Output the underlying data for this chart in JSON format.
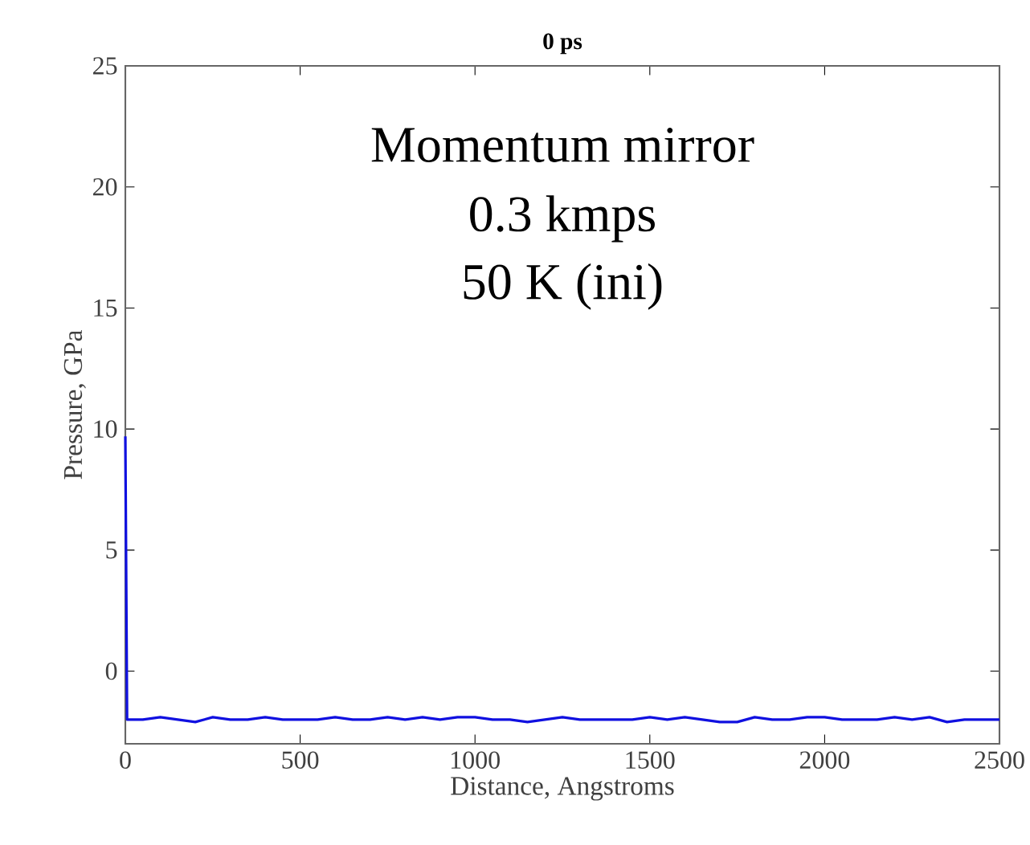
{
  "chart_data": {
    "type": "line",
    "title": "0 ps",
    "xlabel": "Distance, Angstroms",
    "ylabel": "Pressure, GPa",
    "annotations": [
      "Momentum mirror",
      "0.3 kmps",
      "50 K (ini)"
    ],
    "xlim": [
      0,
      2500
    ],
    "ylim": [
      -3,
      25
    ],
    "xticks": [
      0,
      500,
      1000,
      1500,
      2000,
      2500
    ],
    "yticks": [
      0,
      5,
      10,
      15,
      20,
      25
    ],
    "marker": "none",
    "line_style": "solid",
    "series": [
      {
        "color": "#1010e0",
        "x": [
          0,
          5,
          50,
          100,
          150,
          200,
          250,
          300,
          350,
          400,
          450,
          500,
          550,
          600,
          650,
          700,
          750,
          800,
          850,
          900,
          950,
          1000,
          1050,
          1100,
          1150,
          1200,
          1250,
          1300,
          1350,
          1400,
          1450,
          1500,
          1550,
          1600,
          1650,
          1700,
          1750,
          1800,
          1850,
          1900,
          1950,
          2000,
          2050,
          2100,
          2150,
          2200,
          2250,
          2300,
          2350,
          2400,
          2450,
          2500
        ],
        "values": [
          9.7,
          -2.0,
          -2.0,
          -1.9,
          -2.0,
          -2.1,
          -1.9,
          -2.0,
          -2.0,
          -1.9,
          -2.0,
          -2.0,
          -2.0,
          -1.9,
          -2.0,
          -2.0,
          -1.9,
          -2.0,
          -1.9,
          -2.0,
          -1.9,
          -1.9,
          -2.0,
          -2.0,
          -2.1,
          -2.0,
          -1.9,
          -2.0,
          -2.0,
          -2.0,
          -2.0,
          -1.9,
          -2.0,
          -1.9,
          -2.0,
          -2.1,
          -2.1,
          -1.9,
          -2.0,
          -2.0,
          -1.9,
          -1.9,
          -2.0,
          -2.0,
          -2.0,
          -1.9,
          -2.0,
          -1.9,
          -2.1,
          -2.0,
          -2.0,
          -2.0
        ]
      }
    ]
  }
}
